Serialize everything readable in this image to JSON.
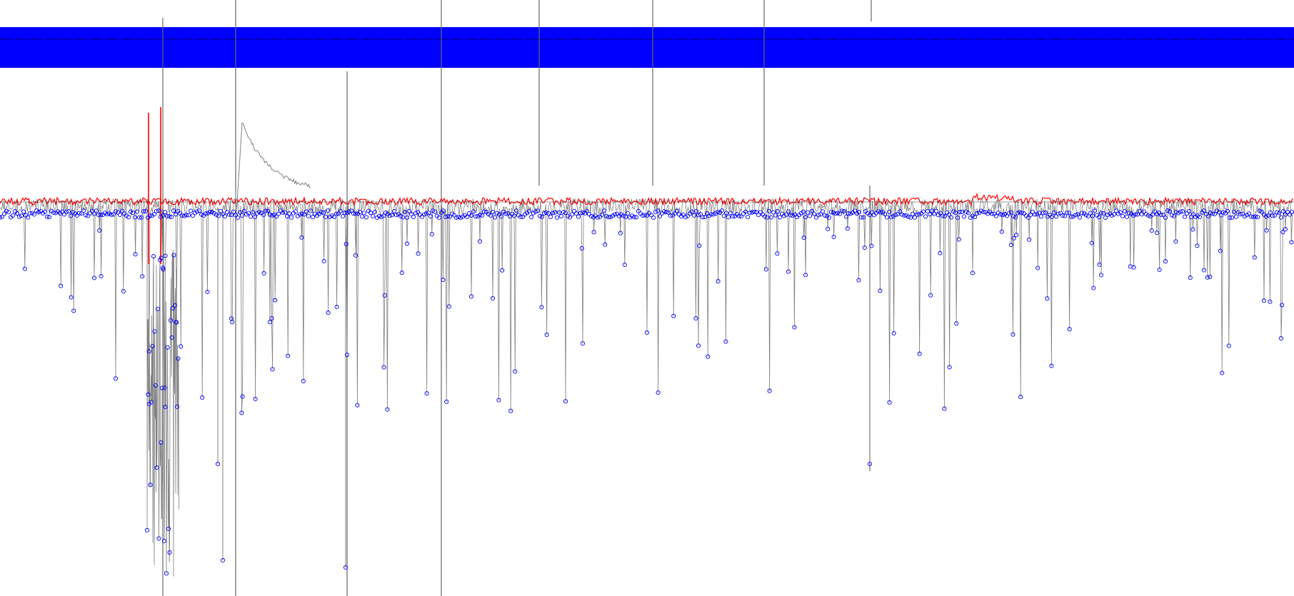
{
  "chart_data": {
    "type": "line",
    "title": "",
    "xlabel": "",
    "ylabel": "",
    "grid": false,
    "legend": "none",
    "series": [
      {
        "role": "raw-trace",
        "color": "#808080"
      },
      {
        "role": "baseline-estimate",
        "color": "#ff0000"
      },
      {
        "role": "detected-events",
        "color": "#0000ff",
        "marker": "circle-plus"
      },
      {
        "role": "top-event-band",
        "color": "#0000ff"
      }
    ],
    "vertical_markers": [
      {
        "color": "#666666"
      },
      {
        "color": "#666666"
      },
      {
        "color": "#666666"
      },
      {
        "color": "#666666"
      },
      {
        "color": "#666666"
      },
      {
        "color": "#666666"
      },
      {
        "color": "#666666"
      },
      {
        "color": "#666666"
      },
      {
        "color": "#666666"
      }
    ],
    "transients": [
      {
        "kind": "slow-decay-bump"
      },
      {
        "kind": "artifact-spike"
      },
      {
        "kind": "artifact-spike"
      }
    ]
  }
}
